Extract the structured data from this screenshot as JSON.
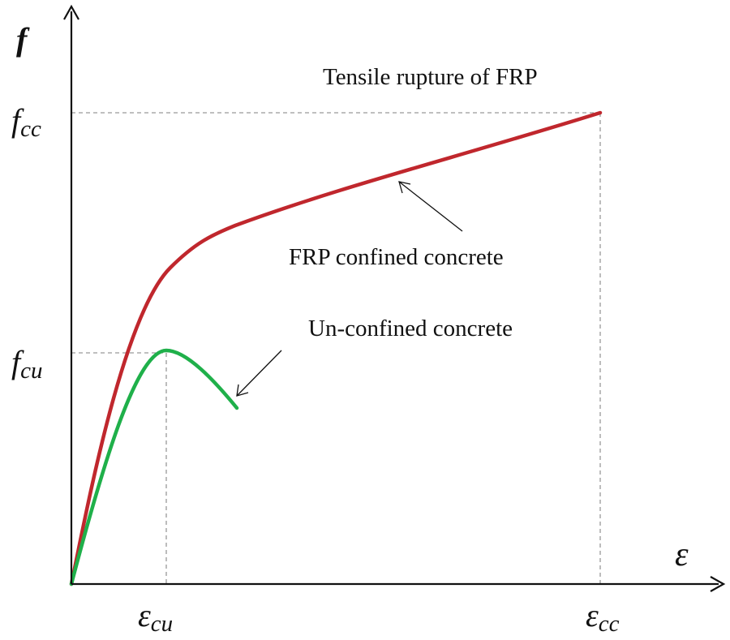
{
  "axes": {
    "y_label": "f",
    "x_label": "ε"
  },
  "ticks": {
    "f_cc": {
      "base": "f",
      "sub": "cc"
    },
    "f_cu": {
      "base": "f",
      "sub": "cu"
    },
    "eps_cu": {
      "base": "ε",
      "sub": "cu"
    },
    "eps_cc": {
      "base": "ε",
      "sub": "cc"
    }
  },
  "annotations": {
    "rupture": "Tensile rupture of FRP",
    "confined": "FRP confined concrete",
    "unconfined": "Un-confined concrete"
  },
  "colors": {
    "confined_curve": "#c0272d",
    "unconfined_curve": "#1fb04a",
    "axis": "#111111",
    "guide": "#999999"
  }
}
